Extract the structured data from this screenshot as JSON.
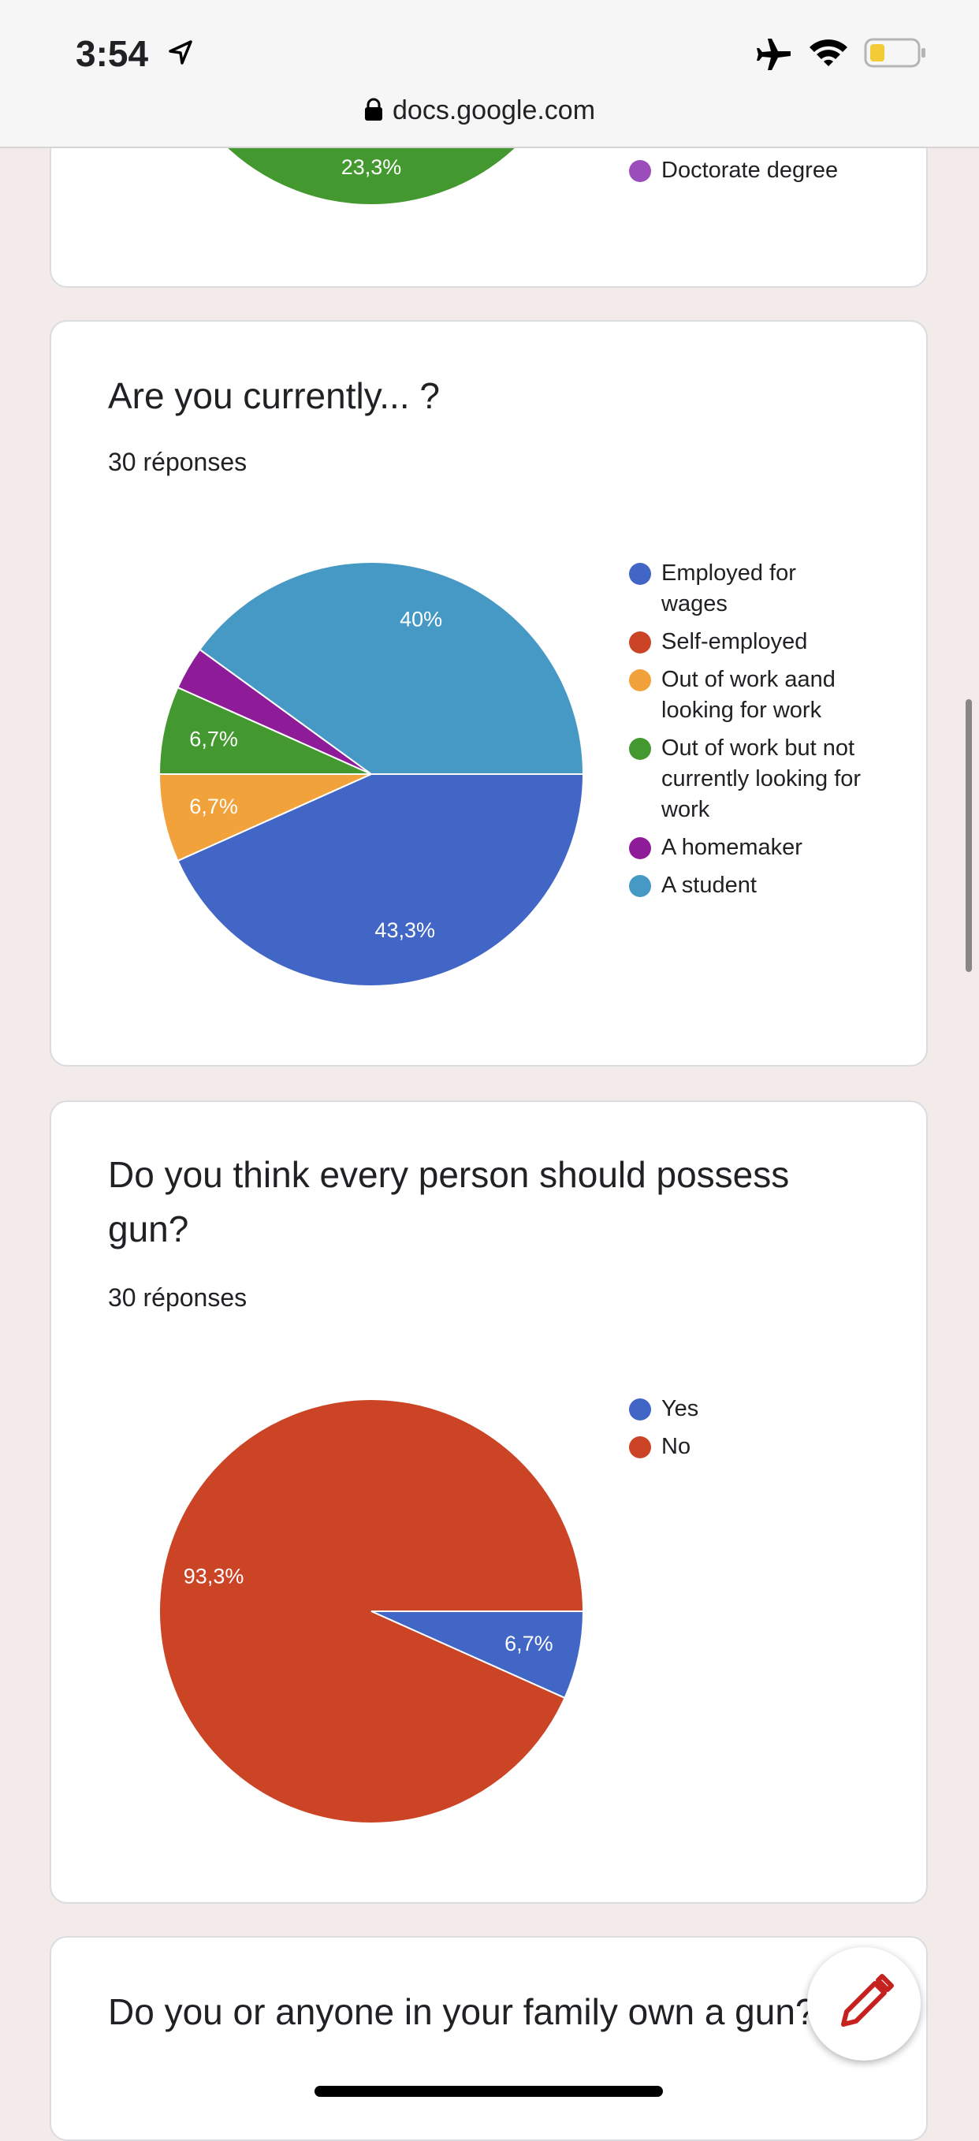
{
  "status_bar": {
    "time": "3:54",
    "url": "docs.google.com"
  },
  "top_card": {
    "slice_label": "23,3%",
    "legend": "Doctorate degree"
  },
  "chart_data": [
    {
      "type": "pie",
      "title": "Are you currently... ?",
      "subtitle": "30 réponses",
      "categories": [
        "Employed for wages",
        "Self-employed",
        "Out of work aand looking for work",
        "Out of work but not currently looking for work",
        "A homemaker",
        "A student"
      ],
      "values": [
        43.3,
        0,
        6.7,
        6.7,
        3.3,
        40
      ],
      "value_labels": [
        "43,3%",
        null,
        "6,7%",
        "6,7%",
        null,
        "40%"
      ],
      "colors": [
        "#4166c6",
        "#cc4426",
        "#f2a23a",
        "#43982f",
        "#8e1c99",
        "#4599c4"
      ]
    },
    {
      "type": "pie",
      "title": "Do you think every person should possess gun?",
      "subtitle": "30 réponses",
      "categories": [
        "Yes",
        "No"
      ],
      "values": [
        6.7,
        93.3
      ],
      "value_labels": [
        "6,7%",
        "93,3%"
      ],
      "colors": [
        "#4166c6",
        "#cc4426"
      ]
    }
  ],
  "next_card": {
    "title": "Do you or anyone in your family own a gun?"
  }
}
